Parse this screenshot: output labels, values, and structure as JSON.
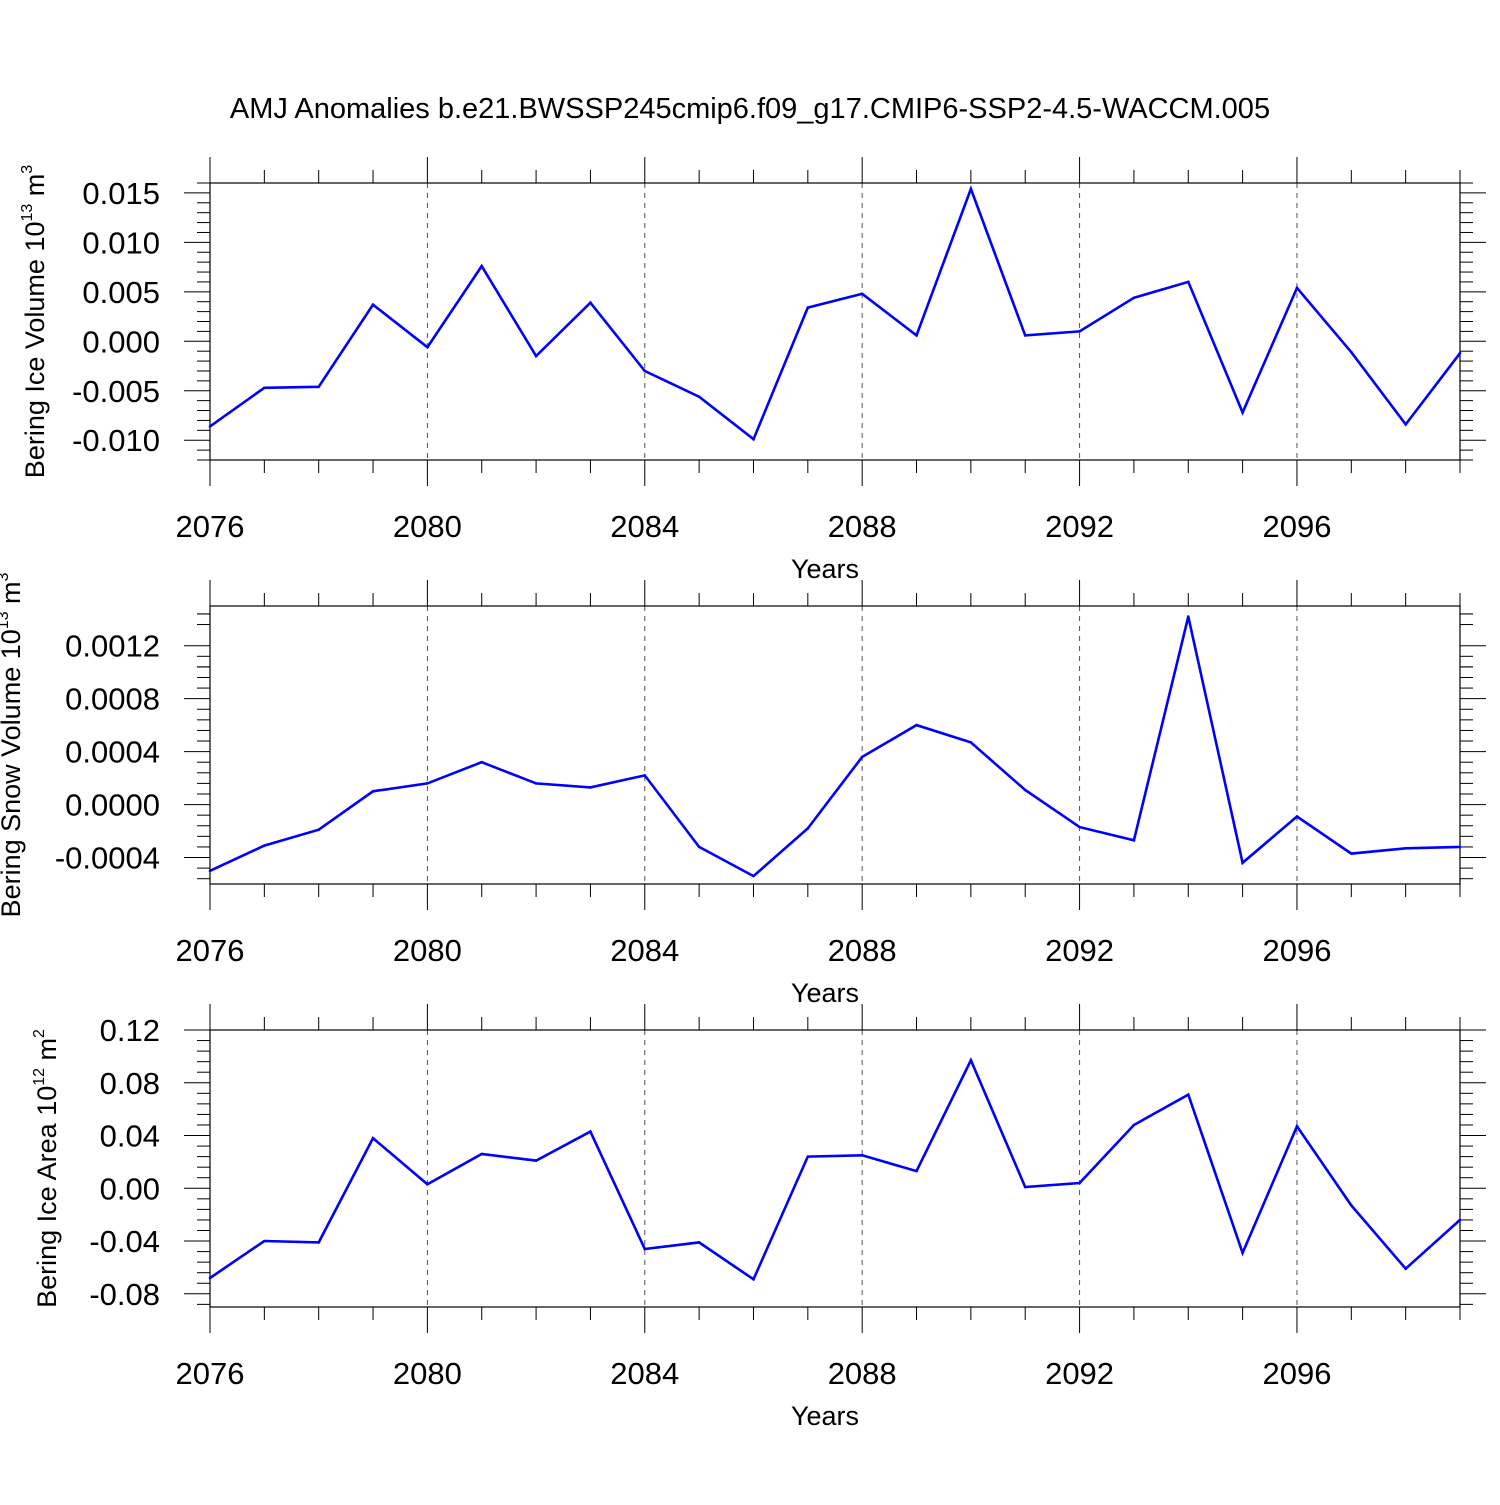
{
  "title": "AMJ Anomalies b.e21.BWSSP245cmip6.f09_g17.CMIP6-SSP2-4.5-WACCM.005",
  "colors": {
    "line": "#0000ff",
    "axis": "#000000",
    "grid": "#555555"
  },
  "chart_data": [
    {
      "type": "line",
      "ylabel": {
        "text": "Bering Ice Volume 10",
        "exp": "13",
        "unit": " m",
        "unit_exp": "3"
      },
      "xlabel": "Years",
      "xlim": [
        2076,
        2099
      ],
      "ylim": [
        -0.012,
        0.016
      ],
      "yticks": [
        -0.01,
        -0.005,
        0.0,
        0.005,
        0.01,
        0.015
      ],
      "ytick_labels": [
        "-0.010",
        "-0.005",
        "0.000",
        "0.005",
        "0.010",
        "0.015"
      ],
      "xticks": [
        2076,
        2080,
        2084,
        2088,
        2092,
        2096
      ],
      "xtick_labels": [
        "2076",
        "2080",
        "2084",
        "2088",
        "2092",
        "2096"
      ],
      "grid": "vertical dashed at major x ticks",
      "x": [
        2076,
        2077,
        2078,
        2079,
        2080,
        2081,
        2082,
        2083,
        2084,
        2085,
        2086,
        2087,
        2088,
        2089,
        2090,
        2091,
        2092,
        2093,
        2094,
        2095,
        2096,
        2097,
        2098,
        2099
      ],
      "values": [
        -0.0086,
        -0.0047,
        -0.0046,
        0.0037,
        -0.0006,
        0.0076,
        -0.0015,
        0.0039,
        -0.003,
        -0.0056,
        -0.0099,
        0.0034,
        0.0048,
        0.0006,
        0.0154,
        0.0006,
        0.001,
        0.0044,
        0.006,
        -0.0072,
        0.0054,
        -0.0011,
        -0.0084,
        -0.0012
      ]
    },
    {
      "type": "line",
      "ylabel": {
        "text": "Bering Snow Volume 10",
        "exp": "13",
        "unit": " m",
        "unit_exp": "3"
      },
      "xlabel": "Years",
      "xlim": [
        2076,
        2099
      ],
      "ylim": [
        -0.0006,
        0.0015
      ],
      "yticks": [
        -0.0004,
        0.0,
        0.0004,
        0.0008,
        0.0012
      ],
      "ytick_labels": [
        "-0.0004",
        "0.0000",
        "0.0004",
        "0.0008",
        "0.0012"
      ],
      "xticks": [
        2076,
        2080,
        2084,
        2088,
        2092,
        2096
      ],
      "xtick_labels": [
        "2076",
        "2080",
        "2084",
        "2088",
        "2092",
        "2096"
      ],
      "grid": "vertical dashed at major x ticks",
      "x": [
        2076,
        2077,
        2078,
        2079,
        2080,
        2081,
        2082,
        2083,
        2084,
        2085,
        2086,
        2087,
        2088,
        2089,
        2090,
        2091,
        2092,
        2093,
        2094,
        2095,
        2096,
        2097,
        2098,
        2099
      ],
      "values": [
        -0.0005,
        -0.00031,
        -0.00019,
        0.0001,
        0.00016,
        0.00032,
        0.00016,
        0.00013,
        0.00022,
        -0.00032,
        -0.00054,
        -0.00018,
        0.00036,
        0.0006,
        0.00047,
        0.00011,
        -0.00017,
        -0.00027,
        0.00142,
        -0.00044,
        -9e-05,
        -0.00037,
        -0.00033,
        -0.00032
      ]
    },
    {
      "type": "line",
      "ylabel": {
        "text": "Bering Ice Area 10",
        "exp": "12",
        "unit": " m",
        "unit_exp": "2"
      },
      "xlabel": "Years",
      "xlim": [
        2076,
        2099
      ],
      "ylim": [
        -0.09,
        0.12
      ],
      "yticks": [
        -0.08,
        -0.04,
        0.0,
        0.04,
        0.08,
        0.12
      ],
      "ytick_labels": [
        "-0.08",
        "-0.04",
        "0.00",
        "0.04",
        "0.08",
        "0.12"
      ],
      "xticks": [
        2076,
        2080,
        2084,
        2088,
        2092,
        2096
      ],
      "xtick_labels": [
        "2076",
        "2080",
        "2084",
        "2088",
        "2092",
        "2096"
      ],
      "grid": "vertical dashed at major x ticks",
      "x": [
        2076,
        2077,
        2078,
        2079,
        2080,
        2081,
        2082,
        2083,
        2084,
        2085,
        2086,
        2087,
        2088,
        2089,
        2090,
        2091,
        2092,
        2093,
        2094,
        2095,
        2096,
        2097,
        2098,
        2099
      ],
      "values": [
        -0.068,
        -0.04,
        -0.041,
        0.038,
        0.003,
        0.026,
        0.021,
        0.043,
        -0.046,
        -0.041,
        -0.069,
        0.024,
        0.025,
        0.013,
        0.097,
        0.001,
        0.004,
        0.048,
        0.071,
        -0.049,
        0.047,
        -0.013,
        -0.061,
        -0.024
      ]
    }
  ]
}
